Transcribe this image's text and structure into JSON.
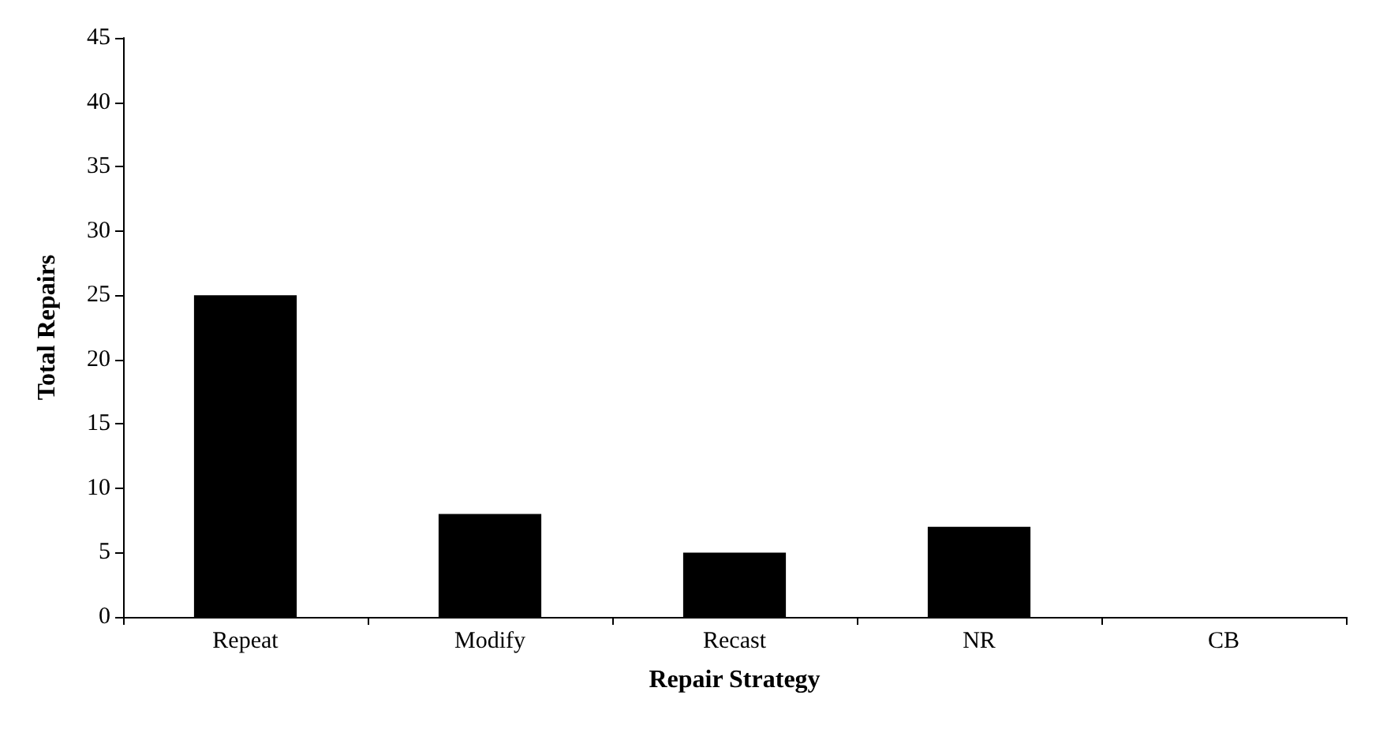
{
  "chart_data": {
    "type": "bar",
    "xlabel": "Repair Strategy",
    "ylabel": "Total Repairs",
    "categories": [
      "Repeat",
      "Modify",
      "Recast",
      "NR",
      "CB"
    ],
    "values": [
      25,
      8,
      5,
      7,
      0
    ],
    "color": "#000000",
    "ylim": [
      0,
      45
    ],
    "yticks": [
      0,
      5,
      10,
      15,
      20,
      25,
      30,
      35,
      40,
      45
    ],
    "grid": false
  }
}
